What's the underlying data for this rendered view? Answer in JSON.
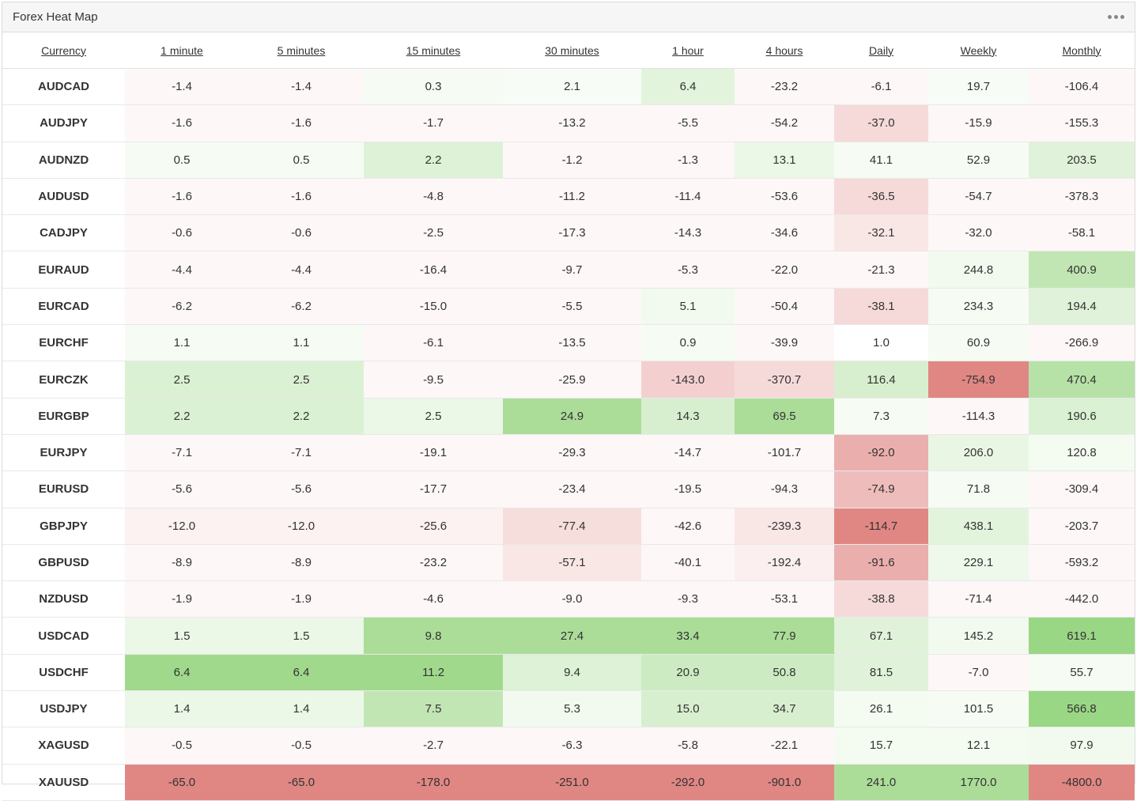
{
  "widget": {
    "title": "Forex Heat Map",
    "menu_icon": "more-horizontal-icon"
  },
  "columns": [
    "Currency",
    "1 minute",
    "5 minutes",
    "15 minutes",
    "30 minutes",
    "1 hour",
    "4 hours",
    "Daily",
    "Weekly",
    "Monthly"
  ],
  "colors": {
    "positive": "#8fd277",
    "negative": "#dc7a76",
    "neutral": "#ffffff"
  },
  "rows": [
    {
      "symbol": "AUDCAD",
      "values": [
        "-1.4",
        "-1.4",
        "0.3",
        "2.1",
        "6.4",
        "-23.2",
        "-6.1",
        "19.7",
        "-106.4"
      ]
    },
    {
      "symbol": "AUDJPY",
      "values": [
        "-1.6",
        "-1.6",
        "-1.7",
        "-13.2",
        "-5.5",
        "-54.2",
        "-37.0",
        "-15.9",
        "-155.3"
      ]
    },
    {
      "symbol": "AUDNZD",
      "values": [
        "0.5",
        "0.5",
        "2.2",
        "-1.2",
        "-1.3",
        "13.1",
        "41.1",
        "52.9",
        "203.5"
      ]
    },
    {
      "symbol": "AUDUSD",
      "values": [
        "-1.6",
        "-1.6",
        "-4.8",
        "-11.2",
        "-11.4",
        "-53.6",
        "-36.5",
        "-54.7",
        "-378.3"
      ]
    },
    {
      "symbol": "CADJPY",
      "values": [
        "-0.6",
        "-0.6",
        "-2.5",
        "-17.3",
        "-14.3",
        "-34.6",
        "-32.1",
        "-32.0",
        "-58.1"
      ]
    },
    {
      "symbol": "EURAUD",
      "values": [
        "-4.4",
        "-4.4",
        "-16.4",
        "-9.7",
        "-5.3",
        "-22.0",
        "-21.3",
        "244.8",
        "400.9"
      ]
    },
    {
      "symbol": "EURCAD",
      "values": [
        "-6.2",
        "-6.2",
        "-15.0",
        "-5.5",
        "5.1",
        "-50.4",
        "-38.1",
        "234.3",
        "194.4"
      ]
    },
    {
      "symbol": "EURCHF",
      "values": [
        "1.1",
        "1.1",
        "-6.1",
        "-13.5",
        "0.9",
        "-39.9",
        "1.0",
        "60.9",
        "-266.9"
      ]
    },
    {
      "symbol": "EURCZK",
      "values": [
        "2.5",
        "2.5",
        "-9.5",
        "-25.9",
        "-143.0",
        "-370.7",
        "116.4",
        "-754.9",
        "470.4"
      ]
    },
    {
      "symbol": "EURGBP",
      "values": [
        "2.2",
        "2.2",
        "2.5",
        "24.9",
        "14.3",
        "69.5",
        "7.3",
        "-114.3",
        "190.6"
      ]
    },
    {
      "symbol": "EURJPY",
      "values": [
        "-7.1",
        "-7.1",
        "-19.1",
        "-29.3",
        "-14.7",
        "-101.7",
        "-92.0",
        "206.0",
        "120.8"
      ]
    },
    {
      "symbol": "EURUSD",
      "values": [
        "-5.6",
        "-5.6",
        "-17.7",
        "-23.4",
        "-19.5",
        "-94.3",
        "-74.9",
        "71.8",
        "-309.4"
      ]
    },
    {
      "symbol": "GBPJPY",
      "values": [
        "-12.0",
        "-12.0",
        "-25.6",
        "-77.4",
        "-42.6",
        "-239.3",
        "-114.7",
        "438.1",
        "-203.7"
      ]
    },
    {
      "symbol": "GBPUSD",
      "values": [
        "-8.9",
        "-8.9",
        "-23.2",
        "-57.1",
        "-40.1",
        "-192.4",
        "-91.6",
        "229.1",
        "-593.2"
      ]
    },
    {
      "symbol": "NZDUSD",
      "values": [
        "-1.9",
        "-1.9",
        "-4.6",
        "-9.0",
        "-9.3",
        "-53.1",
        "-38.8",
        "-71.4",
        "-442.0"
      ]
    },
    {
      "symbol": "USDCAD",
      "values": [
        "1.5",
        "1.5",
        "9.8",
        "27.4",
        "33.4",
        "77.9",
        "67.1",
        "145.2",
        "619.1"
      ]
    },
    {
      "symbol": "USDCHF",
      "values": [
        "6.4",
        "6.4",
        "11.2",
        "9.4",
        "20.9",
        "50.8",
        "81.5",
        "-7.0",
        "55.7"
      ]
    },
    {
      "symbol": "USDJPY",
      "values": [
        "1.4",
        "1.4",
        "7.5",
        "5.3",
        "15.0",
        "34.7",
        "26.1",
        "101.5",
        "566.8"
      ]
    },
    {
      "symbol": "XAGUSD",
      "values": [
        "-0.5",
        "-0.5",
        "-2.7",
        "-6.3",
        "-5.8",
        "-22.1",
        "15.7",
        "12.1",
        "97.9"
      ]
    },
    {
      "symbol": "XAUUSD",
      "values": [
        "-65.0",
        "-65.0",
        "-178.0",
        "-251.0",
        "-292.0",
        "-901.0",
        "241.0",
        "1770.0",
        "-4800.0"
      ]
    }
  ],
  "intensity": [
    [
      0.06,
      0.06,
      0.08,
      0.06,
      0.25,
      0.06,
      0.06,
      0.06,
      0.06
    ],
    [
      0.06,
      0.06,
      0.06,
      0.06,
      0.06,
      0.06,
      0.28,
      0.06,
      0.06
    ],
    [
      0.08,
      0.08,
      0.3,
      0.06,
      0.06,
      0.18,
      0.08,
      0.08,
      0.28
    ],
    [
      0.06,
      0.06,
      0.06,
      0.06,
      0.06,
      0.06,
      0.28,
      0.06,
      0.06
    ],
    [
      0.06,
      0.06,
      0.06,
      0.06,
      0.06,
      0.06,
      0.18,
      0.06,
      0.06
    ],
    [
      0.06,
      0.06,
      0.06,
      0.06,
      0.06,
      0.06,
      0.06,
      0.12,
      0.55
    ],
    [
      0.06,
      0.06,
      0.06,
      0.06,
      0.12,
      0.06,
      0.28,
      0.08,
      0.28
    ],
    [
      0.08,
      0.08,
      0.06,
      0.06,
      0.08,
      0.06,
      0.0,
      0.08,
      0.06
    ],
    [
      0.32,
      0.32,
      0.06,
      0.06,
      0.35,
      0.28,
      0.35,
      0.9,
      0.65
    ],
    [
      0.32,
      0.32,
      0.18,
      0.75,
      0.35,
      0.75,
      0.08,
      0.06,
      0.32
    ],
    [
      0.06,
      0.06,
      0.06,
      0.06,
      0.06,
      0.06,
      0.6,
      0.2,
      0.1
    ],
    [
      0.06,
      0.06,
      0.06,
      0.06,
      0.06,
      0.06,
      0.5,
      0.08,
      0.06
    ],
    [
      0.1,
      0.1,
      0.1,
      0.25,
      0.06,
      0.18,
      0.9,
      0.25,
      0.06
    ],
    [
      0.06,
      0.06,
      0.06,
      0.18,
      0.06,
      0.12,
      0.6,
      0.15,
      0.06
    ],
    [
      0.06,
      0.06,
      0.06,
      0.06,
      0.06,
      0.06,
      0.28,
      0.06,
      0.06
    ],
    [
      0.18,
      0.18,
      0.75,
      0.75,
      0.75,
      0.75,
      0.28,
      0.12,
      0.9
    ],
    [
      0.85,
      0.85,
      0.85,
      0.3,
      0.45,
      0.45,
      0.28,
      0.06,
      0.08
    ],
    [
      0.18,
      0.18,
      0.55,
      0.12,
      0.35,
      0.35,
      0.1,
      0.08,
      0.9
    ],
    [
      0.06,
      0.06,
      0.06,
      0.06,
      0.06,
      0.06,
      0.1,
      0.1,
      0.12
    ],
    [
      0.9,
      0.9,
      0.9,
      0.9,
      0.9,
      0.9,
      0.75,
      0.75,
      0.9
    ]
  ]
}
